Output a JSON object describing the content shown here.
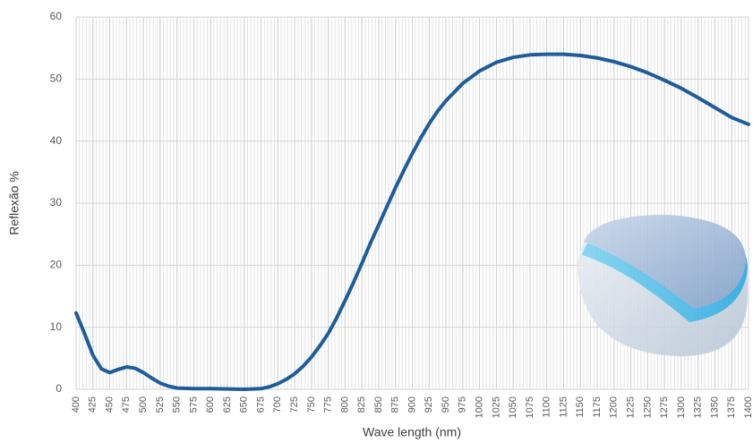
{
  "chart_data": {
    "type": "line",
    "x_label": "Wave length (nm)",
    "y_label": "Reflexão %",
    "x": [
      400,
      412.5,
      425,
      437.5,
      450,
      462.5,
      475,
      487.5,
      500,
      512.5,
      525,
      537.5,
      550,
      575,
      600,
      625,
      650,
      675,
      687.5,
      700,
      712.5,
      725,
      737.5,
      750,
      762.5,
      775,
      787.5,
      800,
      812.5,
      825,
      837.5,
      850,
      862.5,
      875,
      887.5,
      900,
      912.5,
      925,
      937.5,
      950,
      975,
      1000,
      1025,
      1050,
      1075,
      1100,
      1125,
      1150,
      1175,
      1200,
      1225,
      1250,
      1275,
      1300,
      1325,
      1350,
      1375,
      1400
    ],
    "series": [
      {
        "color": "#1f5c9a",
        "values": [
          12.3,
          9,
          5.5,
          3.3,
          2.7,
          3.2,
          3.6,
          3.4,
          2.7,
          1.8,
          1.0,
          0.5,
          0.2,
          0.1,
          0.1,
          0.05,
          0,
          0.1,
          0.4,
          0.9,
          1.6,
          2.5,
          3.7,
          5.2,
          7,
          9,
          11.5,
          14.3,
          17.2,
          20.3,
          23.5,
          26.5,
          29.5,
          32.5,
          35.3,
          38,
          40.5,
          42.8,
          44.8,
          46.5,
          49.3,
          51.3,
          52.7,
          53.5,
          53.9,
          54.0,
          54.0,
          53.8,
          53.4,
          52.8,
          52.0,
          51.0,
          49.8,
          48.5,
          47.0,
          45.4,
          43.8,
          42.7
        ]
      }
    ],
    "xlim": [
      400,
      1400
    ],
    "ylim": [
      0,
      60
    ],
    "xticks": [
      400,
      425,
      450,
      475,
      500,
      525,
      550,
      575,
      600,
      625,
      650,
      675,
      700,
      725,
      750,
      775,
      800,
      825,
      850,
      875,
      900,
      925,
      950,
      975,
      1000,
      1025,
      1050,
      1075,
      1100,
      1125,
      1150,
      1175,
      1200,
      1225,
      1250,
      1275,
      1300,
      1325,
      1350,
      1375,
      1400
    ],
    "yticks": [
      0,
      10,
      20,
      30,
      40,
      50,
      60
    ],
    "grid": true,
    "x_minor_step": 5
  }
}
